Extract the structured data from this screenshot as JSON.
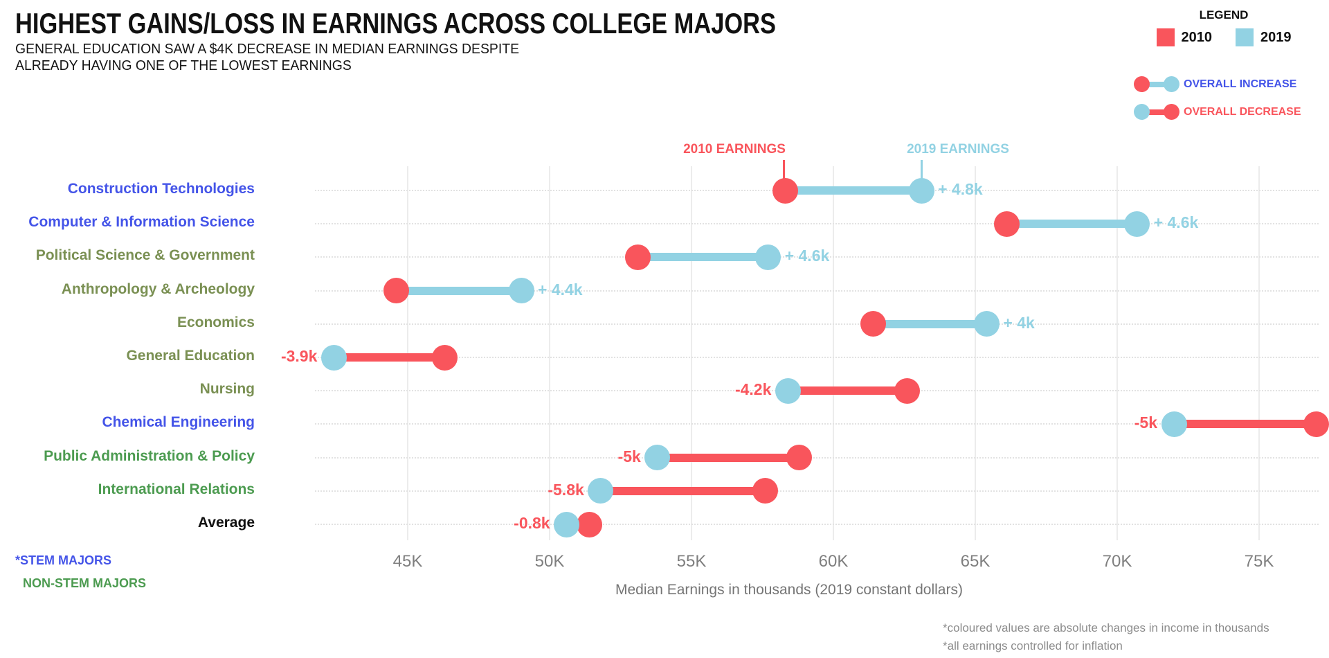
{
  "title": "HIGHEST GAINS/LOSS IN EARNINGS ACROSS COLLEGE MAJORS",
  "subtitle_line1": "GENERAL EDUCATION SAW A $4K DECREASE  IN MEDIAN EARNINGS DESPITE",
  "subtitle_line2": "ALREADY HAVING ONE OF THE LOWEST EARNINGS",
  "legend": {
    "title": "LEGEND",
    "items": [
      {
        "label": "2010",
        "color": "#F9555C"
      },
      {
        "label": "2019",
        "color": "#92D2E3"
      }
    ],
    "increase_label": "OVERALL INCREASE",
    "decrease_label": "OVERALL DECREASE"
  },
  "annotations": {
    "earnings_2010": "2010 EARNINGS",
    "earnings_2019": "2019 EARNINGS"
  },
  "footer": {
    "stem": "*STEM MAJORS",
    "non_stem": "NON-STEM MAJORS"
  },
  "footnotes": [
    "*coloured values are absolute changes in income in thousands",
    "*all earnings controlled for inflation"
  ],
  "colors": {
    "red": "#F9555C",
    "lightblue": "#92D2E3",
    "blue": "#4454E8",
    "olive": "#7A9053",
    "green": "#4C9B50",
    "black": "#111111",
    "axis_gray": "#7F7F7F",
    "note_gray": "#8C8C8C",
    "gridline": "#ECECEC",
    "rowline": "#E2E2E2"
  },
  "chart_data": {
    "type": "dumbbell",
    "title": "HIGHEST GAINS/LOSS IN EARNINGS ACROSS COLLEGE MAJORS",
    "xlabel": "Median Earnings in thousands (2019 constant dollars)",
    "xlim": [
      40,
      77.5
    ],
    "x_ticks": [
      {
        "label": "45K",
        "value": 45
      },
      {
        "label": "50K",
        "value": 50
      },
      {
        "label": "55K",
        "value": 55
      },
      {
        "label": "60K",
        "value": 60
      },
      {
        "label": "65K",
        "value": 65
      },
      {
        "label": "70K",
        "value": 70
      },
      {
        "label": "75K",
        "value": 75
      }
    ],
    "grid": "vertical-solid-plus-horizontal-dotted-row-lines",
    "series_names": [
      "2010 Earnings",
      "2019 Earnings"
    ],
    "categories": [
      {
        "label": "Construction Technologies",
        "group": "stem",
        "earnings_2010": 58.3,
        "earnings_2019": 63.1,
        "change": 4.8,
        "change_label": "+ 4.8k",
        "direction": "increase"
      },
      {
        "label": "Computer & Information Science",
        "group": "stem",
        "earnings_2010": 66.1,
        "earnings_2019": 70.7,
        "change": 4.6,
        "change_label": "+ 4.6k",
        "direction": "increase"
      },
      {
        "label": "Political Science & Government",
        "group": "non-stem-olive",
        "earnings_2010": 53.1,
        "earnings_2019": 57.7,
        "change": 4.6,
        "change_label": "+ 4.6k",
        "direction": "increase"
      },
      {
        "label": "Anthropology & Archeology",
        "group": "non-stem-olive",
        "earnings_2010": 44.6,
        "earnings_2019": 49.0,
        "change": 4.4,
        "change_label": "+ 4.4k",
        "direction": "increase"
      },
      {
        "label": "Economics",
        "group": "non-stem-olive",
        "earnings_2010": 61.4,
        "earnings_2019": 65.4,
        "change": 4.0,
        "change_label": "+ 4k",
        "direction": "increase"
      },
      {
        "label": "General Education",
        "group": "non-stem-olive",
        "earnings_2010": 46.3,
        "earnings_2019": 42.4,
        "change": -3.9,
        "change_label": "-3.9k",
        "direction": "decrease"
      },
      {
        "label": "Nursing",
        "group": "non-stem-olive",
        "earnings_2010": 62.6,
        "earnings_2019": 58.4,
        "change": -4.2,
        "change_label": "-4.2k",
        "direction": "decrease"
      },
      {
        "label": "Chemical Engineering",
        "group": "stem",
        "earnings_2010": 77.0,
        "earnings_2019": 72.0,
        "change": -5.0,
        "change_label": "-5k",
        "direction": "decrease"
      },
      {
        "label": "Public Administration & Policy",
        "group": "non-stem-green",
        "earnings_2010": 58.8,
        "earnings_2019": 53.8,
        "change": -5.0,
        "change_label": "-5k",
        "direction": "decrease"
      },
      {
        "label": "International Relations",
        "group": "non-stem-green",
        "earnings_2010": 57.6,
        "earnings_2019": 51.8,
        "change": -5.8,
        "change_label": "-5.8k",
        "direction": "decrease"
      },
      {
        "label": "Average",
        "group": "average",
        "earnings_2010": 51.4,
        "earnings_2019": 50.6,
        "change": -0.8,
        "change_label": "-0.8k",
        "direction": "decrease"
      }
    ]
  }
}
